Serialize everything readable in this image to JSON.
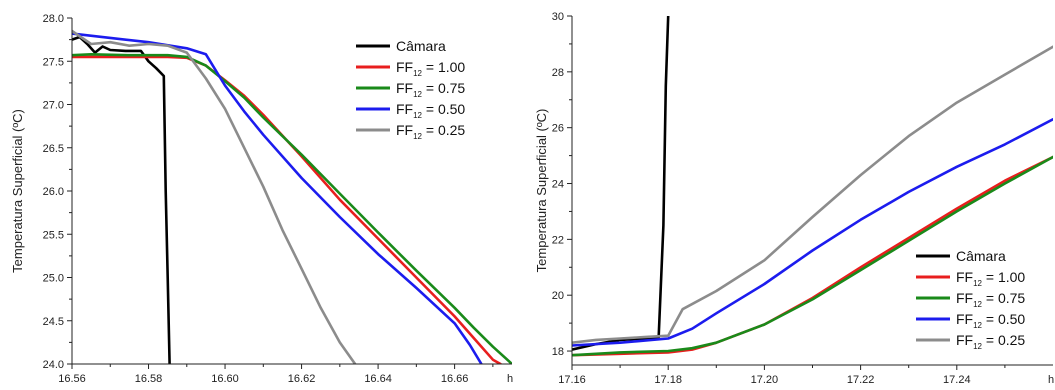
{
  "chart_data": [
    {
      "type": "line",
      "ylabel": "Temperatura Superficial (ºC)",
      "x_unit": "h",
      "xlim": [
        16.56,
        16.675
      ],
      "ylim": [
        24.0,
        28.0
      ],
      "x_ticks": [
        "16.56",
        "16.58",
        "16.60",
        "16.62",
        "16.64",
        "16.66"
      ],
      "x_tick_values": [
        16.56,
        16.58,
        16.6,
        16.62,
        16.64,
        16.66
      ],
      "y_ticks": [
        "24.0",
        "24.5",
        "25.0",
        "25.5",
        "26.0",
        "26.5",
        "27.0",
        "27.5",
        "28.0"
      ],
      "y_tick_values": [
        24.0,
        24.5,
        25.0,
        25.5,
        26.0,
        26.5,
        27.0,
        27.5,
        28.0
      ],
      "legend_position": "top-right",
      "series": [
        {
          "name": "Câmara",
          "color": "#000000",
          "label_main": "Câmara",
          "label_sub": "",
          "label_value": "",
          "x": [
            16.56,
            16.562,
            16.564,
            16.566,
            16.568,
            16.57,
            16.574,
            16.578,
            16.58,
            16.582,
            16.584,
            16.5845,
            16.585,
            16.5855
          ],
          "y": [
            27.75,
            27.78,
            27.7,
            27.6,
            27.67,
            27.63,
            27.62,
            27.62,
            27.5,
            27.42,
            27.33,
            26.0,
            25.0,
            24.0
          ]
        },
        {
          "name": "FF12 = 1.00",
          "color": "#e81e1e",
          "label_main": "FF",
          "label_sub": "12",
          "label_value": " = 1.00",
          "x": [
            16.56,
            16.565,
            16.575,
            16.585,
            16.59,
            16.595,
            16.6,
            16.605,
            16.61,
            16.62,
            16.63,
            16.64,
            16.65,
            16.66,
            16.665,
            16.67,
            16.672
          ],
          "y": [
            27.55,
            27.55,
            27.55,
            27.55,
            27.54,
            27.45,
            27.28,
            27.1,
            26.88,
            26.4,
            25.9,
            25.45,
            25.0,
            24.55,
            24.3,
            24.05,
            24.0
          ]
        },
        {
          "name": "FF12 = 0.75",
          "color": "#1a8a1a",
          "label_main": "FF",
          "label_sub": "12",
          "label_value": " = 0.75",
          "x": [
            16.56,
            16.565,
            16.575,
            16.585,
            16.59,
            16.595,
            16.6,
            16.605,
            16.61,
            16.62,
            16.63,
            16.64,
            16.65,
            16.66,
            16.665,
            16.67,
            16.675
          ],
          "y": [
            27.57,
            27.58,
            27.57,
            27.57,
            27.55,
            27.45,
            27.27,
            27.08,
            26.85,
            26.42,
            25.97,
            25.52,
            25.08,
            24.65,
            24.42,
            24.2,
            24.0
          ]
        },
        {
          "name": "FF12 = 0.50",
          "color": "#1c1cee",
          "label_main": "FF",
          "label_sub": "12",
          "label_value": " = 0.50",
          "x": [
            16.56,
            16.57,
            16.58,
            16.59,
            16.595,
            16.6,
            16.605,
            16.61,
            16.62,
            16.63,
            16.64,
            16.65,
            16.66,
            16.664,
            16.667
          ],
          "y": [
            27.82,
            27.77,
            27.72,
            27.65,
            27.58,
            27.22,
            26.92,
            26.65,
            26.15,
            25.7,
            25.27,
            24.88,
            24.47,
            24.22,
            24.0
          ]
        },
        {
          "name": "FF12 = 0.25",
          "color": "#8c8c8c",
          "label_main": "FF",
          "label_sub": "12",
          "label_value": " = 0.25",
          "x": [
            16.56,
            16.565,
            16.57,
            16.575,
            16.58,
            16.585,
            16.59,
            16.595,
            16.6,
            16.605,
            16.61,
            16.615,
            16.62,
            16.625,
            16.63,
            16.634
          ],
          "y": [
            27.85,
            27.7,
            27.72,
            27.68,
            27.7,
            27.68,
            27.6,
            27.3,
            26.95,
            26.5,
            26.05,
            25.55,
            25.1,
            24.65,
            24.25,
            24.0
          ]
        }
      ]
    },
    {
      "type": "line",
      "ylabel": "Temperatura Superficial (ºC)",
      "x_unit": "h",
      "xlim": [
        17.16,
        17.26
      ],
      "ylim": [
        17.5,
        30
      ],
      "x_ticks": [
        "17.16",
        "17.18",
        "17.20",
        "17.22",
        "17.24"
      ],
      "x_tick_values": [
        17.16,
        17.18,
        17.2,
        17.22,
        17.24
      ],
      "y_ticks": [
        "18",
        "20",
        "22",
        "24",
        "26",
        "28",
        "30"
      ],
      "y_tick_values": [
        18,
        20,
        22,
        24,
        26,
        28,
        30
      ],
      "legend_position": "bottom-right",
      "series": [
        {
          "name": "Câmara",
          "color": "#000000",
          "label_main": "Câmara",
          "label_sub": "",
          "label_value": "",
          "x": [
            17.16,
            17.165,
            17.17,
            17.175,
            17.178,
            17.179,
            17.1795,
            17.18
          ],
          "y": [
            18.05,
            18.25,
            18.4,
            18.45,
            18.45,
            22.5,
            27.5,
            30.0
          ]
        },
        {
          "name": "FF12 = 1.00",
          "color": "#e81e1e",
          "label_main": "FF",
          "label_sub": "12",
          "label_value": " = 1.00",
          "x": [
            17.16,
            17.17,
            17.18,
            17.185,
            17.19,
            17.2,
            17.21,
            17.22,
            17.23,
            17.24,
            17.25,
            17.26
          ],
          "y": [
            17.85,
            17.9,
            17.95,
            18.05,
            18.3,
            18.95,
            19.9,
            21.0,
            22.05,
            23.1,
            24.1,
            24.95
          ]
        },
        {
          "name": "FF12 = 0.75",
          "color": "#1a8a1a",
          "label_main": "FF",
          "label_sub": "12",
          "label_value": " = 0.75",
          "x": [
            17.16,
            17.17,
            17.18,
            17.185,
            17.19,
            17.2,
            17.21,
            17.22,
            17.23,
            17.24,
            17.25,
            17.26
          ],
          "y": [
            17.85,
            17.95,
            18.0,
            18.1,
            18.3,
            18.95,
            19.85,
            20.9,
            21.95,
            23.0,
            24.0,
            24.95
          ]
        },
        {
          "name": "FF12 = 0.50",
          "color": "#1c1cee",
          "label_main": "FF",
          "label_sub": "12",
          "label_value": " = 0.50",
          "x": [
            17.16,
            17.17,
            17.18,
            17.185,
            17.19,
            17.2,
            17.21,
            17.22,
            17.23,
            17.24,
            17.25,
            17.26
          ],
          "y": [
            18.2,
            18.3,
            18.45,
            18.8,
            19.35,
            20.4,
            21.6,
            22.7,
            23.7,
            24.6,
            25.4,
            26.3
          ]
        },
        {
          "name": "FF12 = 0.25",
          "color": "#8c8c8c",
          "label_main": "FF",
          "label_sub": "12",
          "label_value": " = 0.25",
          "x": [
            17.16,
            17.165,
            17.17,
            17.175,
            17.18,
            17.183,
            17.19,
            17.2,
            17.21,
            17.22,
            17.23,
            17.24,
            17.25,
            17.26
          ],
          "y": [
            18.3,
            18.4,
            18.45,
            18.5,
            18.55,
            19.5,
            20.15,
            21.25,
            22.8,
            24.3,
            25.7,
            26.9,
            27.9,
            28.9
          ]
        }
      ]
    }
  ]
}
